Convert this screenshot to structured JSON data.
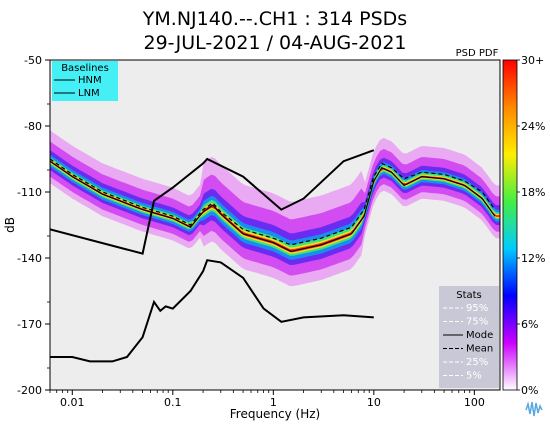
{
  "chart_data": {
    "type": "line",
    "title_line1": "YM.NJ140.--.CH1 : 314 PSDs",
    "title_line2": "29-JUL-2021 / 04-AUG-2021",
    "xlabel": "Frequency (Hz)",
    "ylabel": "dB",
    "x_scale": "log",
    "xlim": [
      0.006,
      180
    ],
    "ylim": [
      -200,
      -50
    ],
    "x_ticks": [
      {
        "value": 0.01,
        "label": "0.01"
      },
      {
        "value": 0.1,
        "label": "0.1"
      },
      {
        "value": 1,
        "label": "1"
      },
      {
        "value": 10,
        "label": "10"
      },
      {
        "value": 100,
        "label": "100"
      }
    ],
    "y_ticks": [
      {
        "value": -50,
        "label": "-50"
      },
      {
        "value": -80,
        "label": "-80"
      },
      {
        "value": -110,
        "label": "-110"
      },
      {
        "value": -140,
        "label": "-140"
      },
      {
        "value": -170,
        "label": "-170"
      },
      {
        "value": -200,
        "label": "-200"
      }
    ],
    "colorbar": {
      "title": "PSD PDF",
      "labels": [
        "30+",
        "24%",
        "18%",
        "12%",
        "6%",
        "0%"
      ],
      "stops": [
        "#ff0000",
        "#ff8800",
        "#ffee00",
        "#44ee44",
        "#00ccff",
        "#0000ff",
        "#cc00ff",
        "#ffffff"
      ]
    },
    "baselines_legend": {
      "title": "Baselines",
      "items": [
        "HNM",
        "LNM"
      ]
    },
    "stats_legend": {
      "title": "Stats",
      "items": [
        {
          "label": "95%",
          "style": "dashed-white"
        },
        {
          "label": "75%",
          "style": "dashed-white"
        },
        {
          "label": "Mode",
          "style": "solid-black"
        },
        {
          "label": "Mean",
          "style": "dashed-black"
        },
        {
          "label": "25%",
          "style": "dashed-white"
        },
        {
          "label": "5%",
          "style": "dashed-white"
        }
      ]
    },
    "series": [
      {
        "name": "HNM",
        "color": "#000000",
        "x": [
          0.006,
          0.05,
          0.065,
          0.1,
          0.2,
          0.22,
          0.5,
          1.2,
          2,
          5,
          10
        ],
        "y": [
          -127,
          -138,
          -114,
          -108,
          -97,
          -95,
          -103,
          -118,
          -113,
          -96,
          -91
        ]
      },
      {
        "name": "LNM",
        "color": "#000000",
        "x": [
          0.006,
          0.01,
          0.015,
          0.025,
          0.035,
          0.05,
          0.065,
          0.075,
          0.085,
          0.1,
          0.15,
          0.2,
          0.22,
          0.3,
          0.5,
          0.8,
          1.2,
          2,
          5,
          10
        ],
        "y": [
          -185,
          -185,
          -187,
          -187,
          -185,
          -176,
          -160,
          -164,
          -162,
          -163,
          -155,
          -146,
          -141,
          -142,
          -149,
          -163,
          -169,
          -167,
          -166,
          -167
        ]
      },
      {
        "name": "Mode",
        "color": "#000000",
        "x": [
          0.006,
          0.01,
          0.02,
          0.05,
          0.1,
          0.15,
          0.2,
          0.25,
          0.3,
          0.5,
          1,
          1.5,
          3,
          6,
          8,
          10,
          12,
          15,
          20,
          30,
          50,
          80,
          120,
          160
        ],
        "y": [
          -96,
          -103,
          -111,
          -118,
          -122,
          -126,
          -119,
          -116,
          -120,
          -129,
          -133,
          -137,
          -134,
          -129,
          -121,
          -105,
          -99,
          -101,
          -107,
          -103,
          -104,
          -107,
          -113,
          -121
        ]
      },
      {
        "name": "Mean",
        "color": "#000000",
        "dashed": true,
        "x": [
          0.006,
          0.01,
          0.02,
          0.05,
          0.1,
          0.15,
          0.2,
          0.25,
          0.3,
          0.5,
          1,
          1.5,
          3,
          6,
          8,
          10,
          12,
          15,
          20,
          30,
          50,
          80,
          120,
          160
        ],
        "y": [
          -95,
          -102,
          -110,
          -117,
          -121,
          -125,
          -118,
          -115,
          -119,
          -127,
          -131,
          -134,
          -131,
          -126,
          -118,
          -103,
          -97,
          -99,
          -104,
          -101,
          -102,
          -105,
          -110,
          -118
        ]
      }
    ]
  }
}
